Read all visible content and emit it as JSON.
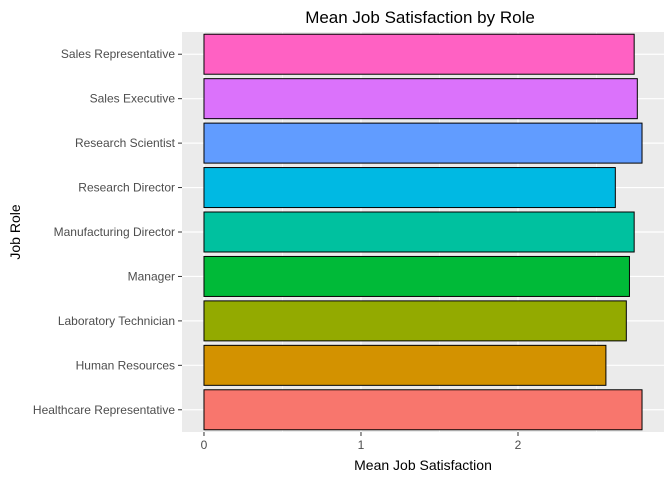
{
  "chart_data": {
    "type": "bar",
    "orientation": "horizontal",
    "title": "Mean Job Satisfaction by Role",
    "xlabel": "Mean Job Satisfaction",
    "ylabel": "Job Role",
    "categories": [
      "Healthcare Representative",
      "Human Resources",
      "Laboratory Technician",
      "Manager",
      "Manufacturing Director",
      "Research Director",
      "Research Scientist",
      "Sales Executive",
      "Sales Representative"
    ],
    "values": [
      2.79,
      2.56,
      2.69,
      2.71,
      2.74,
      2.62,
      2.79,
      2.76,
      2.74
    ],
    "colors": [
      "#F8766D",
      "#D39200",
      "#93AA00",
      "#00BA38",
      "#00C19F",
      "#00B9E3",
      "#619CFF",
      "#DB72FB",
      "#FF61C3"
    ],
    "x_ticks": [
      0,
      1,
      2
    ],
    "xlim": [
      -0.14,
      2.93
    ],
    "grid": true,
    "panel_background": "#EBEBEB",
    "legend": "none"
  }
}
